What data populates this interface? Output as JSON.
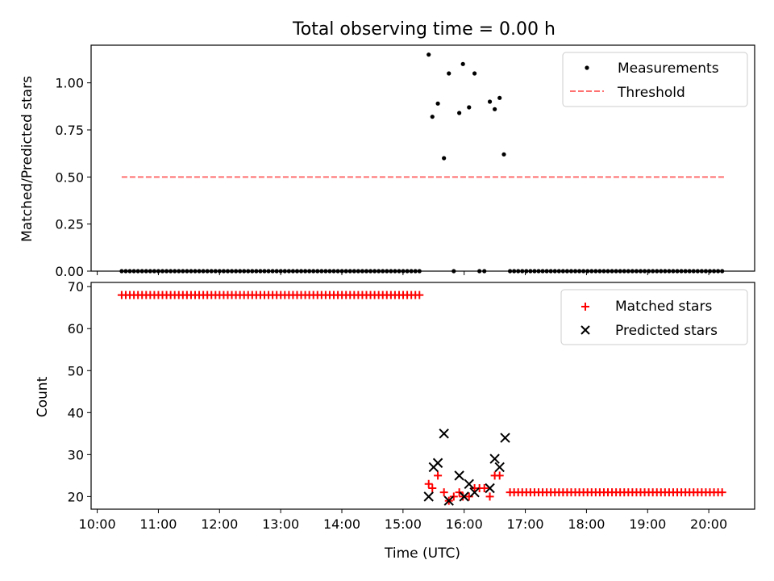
{
  "chart_data": [
    {
      "type": "scatter",
      "title": "Total observing time = 0.00 h",
      "ylabel": "Matched/Predicted stars",
      "ylim": [
        0,
        1.2
      ],
      "yticks": [
        "0.00",
        "0.25",
        "0.50",
        "0.75",
        "1.00"
      ],
      "legend_position": "top-right",
      "series": [
        {
          "name": "Measurements",
          "marker": "dot",
          "color": "#000000",
          "points": [
            [
              15.42,
              1.15
            ],
            [
              15.48,
              0.82
            ],
            [
              15.57,
              0.89
            ],
            [
              15.67,
              0.6
            ],
            [
              15.75,
              1.05
            ],
            [
              15.92,
              0.84
            ],
            [
              15.98,
              1.1
            ],
            [
              16.08,
              0.87
            ],
            [
              16.17,
              1.05
            ],
            [
              16.42,
              0.9
            ],
            [
              16.5,
              0.86
            ],
            [
              16.58,
              0.92
            ],
            [
              16.65,
              0.62
            ],
            [
              15.83,
              0.0
            ],
            [
              16.25,
              0.0
            ],
            [
              16.33,
              0.0
            ]
          ]
        },
        {
          "name": "Threshold",
          "style": "dashed",
          "color": "#ff7070",
          "points": [
            [
              10.4,
              0.5
            ],
            [
              20.25,
              0.5
            ]
          ]
        }
      ],
      "zero_baseline": {
        "value": 0.0,
        "ranges": [
          [
            10.4,
            15.33,
            0.0667
          ],
          [
            16.75,
            20.25,
            0.0667
          ]
        ]
      }
    },
    {
      "type": "scatter",
      "xlabel": "Time (UTC)",
      "ylabel": "Count",
      "ylim": [
        17,
        71
      ],
      "yticks": [
        "20",
        "30",
        "40",
        "50",
        "60",
        "70"
      ],
      "xlim": [
        9.9,
        20.75
      ],
      "xticks": [
        "10:00",
        "11:00",
        "12:00",
        "13:00",
        "14:00",
        "15:00",
        "16:00",
        "17:00",
        "18:00",
        "19:00",
        "20:00"
      ],
      "legend_position": "top-right",
      "series": [
        {
          "name": "Matched stars",
          "marker": "plus",
          "color": "#ff0000",
          "ranges": [
            [
              10.4,
              15.33,
              0.0667,
              68
            ],
            [
              16.75,
              20.25,
              0.0667,
              21
            ]
          ],
          "points": [
            [
              15.42,
              23
            ],
            [
              15.48,
              22
            ],
            [
              15.57,
              25
            ],
            [
              15.67,
              21
            ],
            [
              15.75,
              19
            ],
            [
              15.83,
              20
            ],
            [
              15.92,
              21
            ],
            [
              15.98,
              20
            ],
            [
              16.08,
              20
            ],
            [
              16.17,
              22
            ],
            [
              16.25,
              22
            ],
            [
              16.33,
              22
            ],
            [
              16.42,
              20
            ],
            [
              16.5,
              25
            ],
            [
              16.58,
              25
            ]
          ]
        },
        {
          "name": "Predicted stars",
          "marker": "x",
          "color": "#000000",
          "points": [
            [
              15.42,
              20
            ],
            [
              15.5,
              27
            ],
            [
              15.57,
              28
            ],
            [
              15.67,
              35
            ],
            [
              15.75,
              19
            ],
            [
              15.92,
              25
            ],
            [
              16.0,
              20
            ],
            [
              16.08,
              23
            ],
            [
              16.17,
              21
            ],
            [
              16.42,
              22
            ],
            [
              16.5,
              29
            ],
            [
              16.58,
              27
            ],
            [
              16.67,
              34
            ]
          ]
        }
      ]
    }
  ]
}
